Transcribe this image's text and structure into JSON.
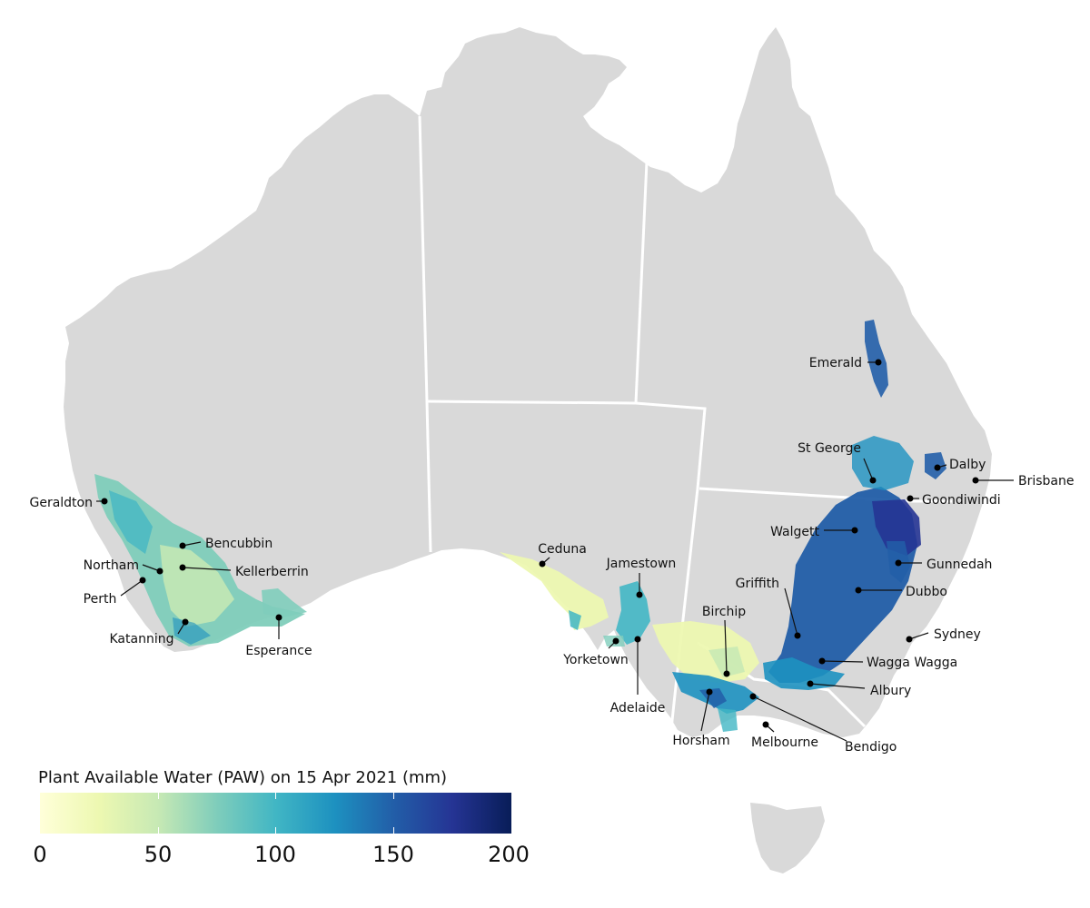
{
  "legend": {
    "title": "Plant Available Water (PAW) on 15 Apr 2021 (mm)",
    "ticks": [
      "0",
      "50",
      "100",
      "150",
      "200"
    ],
    "range": [
      0,
      200
    ],
    "colors": [
      "#ffffd9",
      "#edf8b1",
      "#c7e9b4",
      "#7fcdbb",
      "#41b6c4",
      "#1d91c0",
      "#225ea8",
      "#253494",
      "#081d58"
    ]
  },
  "map": {
    "land_color": "#d9d9d9",
    "border_color": "#ffffff",
    "places": [
      {
        "name": "Emerald"
      },
      {
        "name": "St George"
      },
      {
        "name": "Dalby"
      },
      {
        "name": "Brisbane"
      },
      {
        "name": "Goondiwindi"
      },
      {
        "name": "Walgett"
      },
      {
        "name": "Gunnedah"
      },
      {
        "name": "Griffith"
      },
      {
        "name": "Dubbo"
      },
      {
        "name": "Sydney"
      },
      {
        "name": "Birchip"
      },
      {
        "name": "Wagga Wagga"
      },
      {
        "name": "Albury"
      },
      {
        "name": "Horsham"
      },
      {
        "name": "Melbourne"
      },
      {
        "name": "Bendigo"
      },
      {
        "name": "Jamestown"
      },
      {
        "name": "Ceduna"
      },
      {
        "name": "Yorketown"
      },
      {
        "name": "Adelaide"
      },
      {
        "name": "Geraldton"
      },
      {
        "name": "Bencubbin"
      },
      {
        "name": "Northam"
      },
      {
        "name": "Kellerberrin"
      },
      {
        "name": "Perth"
      },
      {
        "name": "Katanning"
      },
      {
        "name": "Esperance"
      }
    ]
  }
}
